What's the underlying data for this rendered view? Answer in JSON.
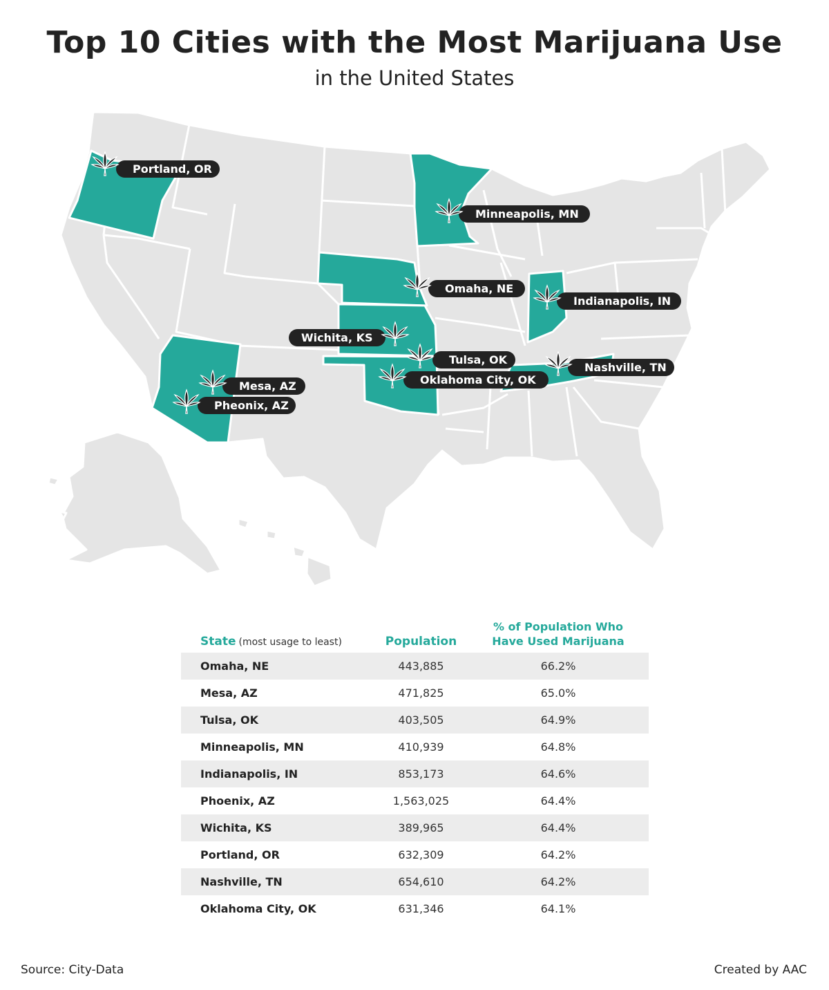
{
  "header": {
    "title": "Top 10 Cities with the Most Marijuana Use",
    "subtitle": "in the United States"
  },
  "colors": {
    "highlight_state": "#25a99b",
    "base_state": "#e5e5e5",
    "label_pill": "#222222",
    "accent_text": "#25a99b"
  },
  "map": {
    "icon": "cannabis-leaf-icon",
    "highlighted_states": [
      "Oregon",
      "Minnesota",
      "Nebraska",
      "Indiana",
      "Kansas",
      "Oklahoma",
      "Tennessee",
      "Arizona"
    ],
    "labels": [
      {
        "id": "portland",
        "text": "Portland, OR"
      },
      {
        "id": "minneapolis",
        "text": "Minneapolis, MN"
      },
      {
        "id": "omaha",
        "text": "Omaha, NE"
      },
      {
        "id": "indianapolis",
        "text": "Indianapolis, IN"
      },
      {
        "id": "wichita",
        "text": "Wichita, KS"
      },
      {
        "id": "tulsa",
        "text": "Tulsa, OK"
      },
      {
        "id": "nashville",
        "text": "Nashville, TN"
      },
      {
        "id": "oklahoma_city",
        "text": "Oklahoma City, OK"
      },
      {
        "id": "mesa",
        "text": "Mesa, AZ"
      },
      {
        "id": "phoenix",
        "text": "Pheonix, AZ"
      }
    ]
  },
  "table": {
    "headers": {
      "state": "State",
      "state_note": "(most usage to least)",
      "population": "Population",
      "pct_line1": "% of Population Who",
      "pct_line2": "Have Used Marijuana"
    },
    "rows": [
      {
        "city": "Omaha, NE",
        "population": "443,885",
        "pct": "66.2%"
      },
      {
        "city": "Mesa, AZ",
        "population": "471,825",
        "pct": "65.0%"
      },
      {
        "city": "Tulsa, OK",
        "population": "403,505",
        "pct": "64.9%"
      },
      {
        "city": "Minneapolis, MN",
        "population": "410,939",
        "pct": "64.8%"
      },
      {
        "city": "Indianapolis, IN",
        "population": "853,173",
        "pct": "64.6%"
      },
      {
        "city": "Phoenix, AZ",
        "population": "1,563,025",
        "pct": "64.4%"
      },
      {
        "city": "Wichita, KS",
        "population": "389,965",
        "pct": "64.4%"
      },
      {
        "city": "Portland, OR",
        "population": "632,309",
        "pct": "64.2%"
      },
      {
        "city": "Nashville, TN",
        "population": "654,610",
        "pct": "64.2%"
      },
      {
        "city": "Oklahoma City, OK",
        "population": "631,346",
        "pct": "64.1%"
      }
    ]
  },
  "footer": {
    "source": "Source: City-Data",
    "credit": "Created by AAC"
  }
}
